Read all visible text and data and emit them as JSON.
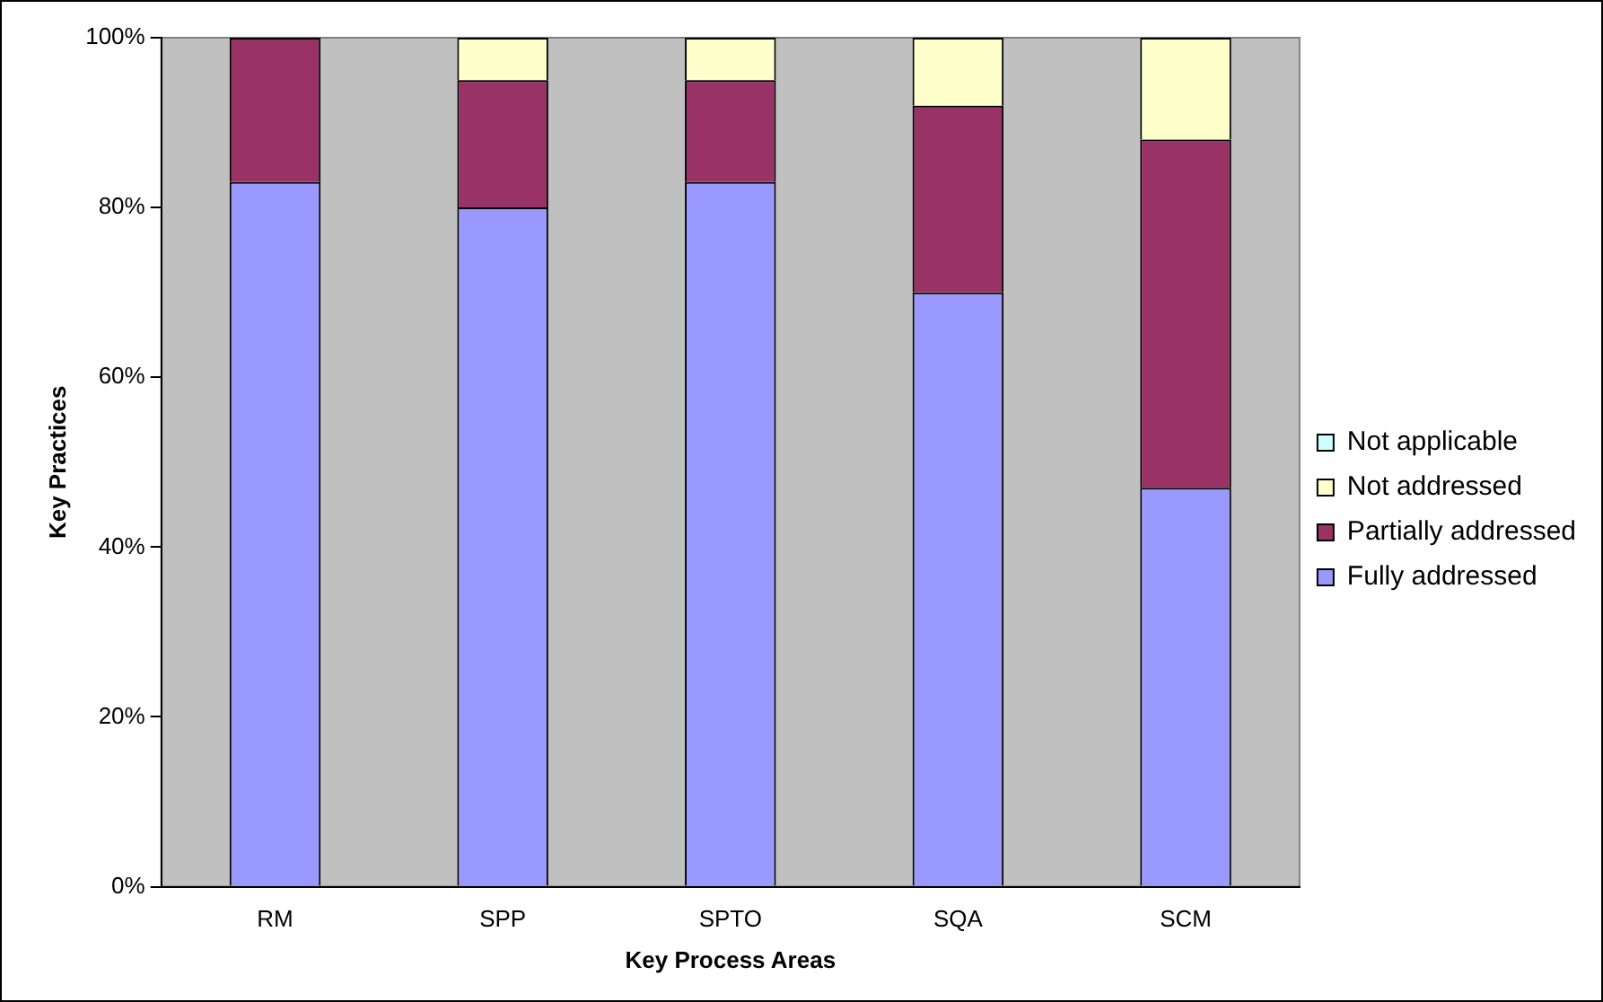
{
  "chart_data": {
    "type": "bar",
    "stacked": true,
    "xlabel": "Key Process Areas",
    "ylabel": "Key Practices",
    "categories": [
      "RM",
      "SPP",
      "SPTO",
      "SQA",
      "SCM"
    ],
    "series": [
      {
        "name": "Fully addressed",
        "color": "#9999ff",
        "values": [
          83,
          80,
          83,
          70,
          47
        ]
      },
      {
        "name": "Partially addressed",
        "color": "#993366",
        "values": [
          17,
          15,
          12,
          22,
          41
        ]
      },
      {
        "name": "Not addressed",
        "color": "#ffffcc",
        "values": [
          0,
          5,
          5,
          8,
          12
        ]
      },
      {
        "name": "Not applicable",
        "color": "#ccffff",
        "values": [
          0,
          0,
          0,
          0,
          0
        ]
      }
    ],
    "ylim": [
      0,
      100
    ],
    "yticks": [
      {
        "value": 0,
        "label": "0%"
      },
      {
        "value": 20,
        "label": "20%"
      },
      {
        "value": 40,
        "label": "40%"
      },
      {
        "value": 60,
        "label": "60%"
      },
      {
        "value": 80,
        "label": "80%"
      },
      {
        "value": 100,
        "label": "100%"
      }
    ],
    "grid": false,
    "legend": "right"
  }
}
